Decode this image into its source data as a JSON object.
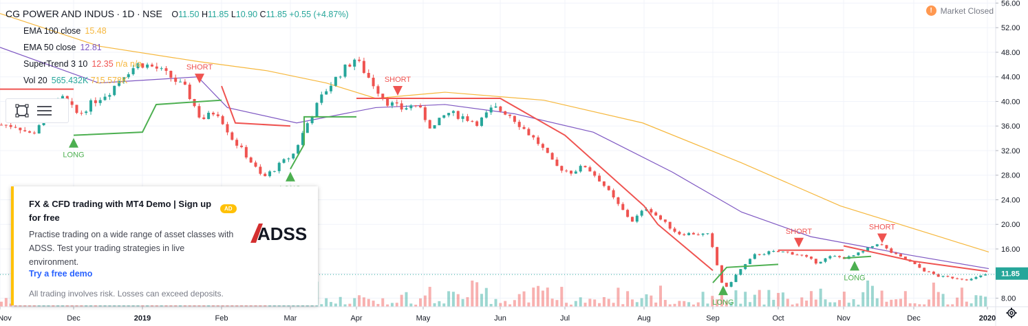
{
  "header": {
    "symbol": "CG POWER AND INDUS",
    "interval": "1D",
    "exchange": "NSE",
    "ohlc": {
      "open_label": "O",
      "open": "11.50",
      "high_label": "H",
      "high": "11.85",
      "low_label": "L",
      "low": "10.90",
      "close_label": "C",
      "close": "11.85",
      "change": "+0.55 (+4.87%)"
    },
    "market_status": "Market Closed",
    "market_status_icon": "!"
  },
  "indicators": [
    {
      "label": "EMA 100 close",
      "value": "15.48",
      "color": "#f6b73c"
    },
    {
      "label": "EMA 50 close",
      "value": "12.81",
      "color": "#7e57c2"
    },
    {
      "label": "SuperTrend 3 10",
      "value": "12.35",
      "extra": "n/a n/a",
      "color": "#ef5350"
    },
    {
      "label": "Vol 20",
      "value": "565.432K",
      "value2": "715.578K",
      "color": "#26a69a"
    }
  ],
  "ad": {
    "title": "FX & CFD trading with MT4 Demo | Sign up for free",
    "badge": "AD",
    "body": "Practise trading on a wide range of asset classes with ADSS. Test your trading strategies in live environment.",
    "logo_text": "ADSS",
    "cta": "Try a free demo",
    "disclaimer": "All trading involves risk. Losses can exceed deposits."
  },
  "colors": {
    "up": "#26a69a",
    "down": "#ef5350",
    "supertrend_up": "#4caf50",
    "supertrend_down": "#ef5350",
    "ema100": "#f6b73c",
    "ema50": "#7e57c2",
    "ad_accent": "#ffc107",
    "link": "#2962ff"
  },
  "chart_data": {
    "type": "candlestick",
    "y_axis": {
      "ticks": [
        56,
        52,
        48,
        44,
        40,
        36,
        32,
        28,
        24,
        20,
        16,
        12,
        8
      ],
      "tick_labels": [
        "56.00",
        "52.00",
        "48.00",
        "44.00",
        "40.00",
        "36.00",
        "32.00",
        "28.00",
        "24.00",
        "20.00",
        "16.00",
        "11.85",
        "8.00"
      ],
      "last_price": "11.85",
      "range": [
        6.6,
        56.5
      ]
    },
    "x_axis": {
      "labels": [
        "Nov",
        "Dec",
        "2019",
        "Feb",
        "Mar",
        "Apr",
        "May",
        "Jun",
        "Jul",
        "Aug",
        "Sep",
        "Oct",
        "Nov",
        "Dec",
        "2020"
      ],
      "bold": [
        "2019",
        "2020"
      ]
    },
    "price_anchors": [
      [
        "Nov",
        36.2
      ],
      [
        "Nov",
        36.0
      ],
      [
        "Nov",
        34.5
      ],
      [
        "Dec",
        38.5
      ],
      [
        "Dec",
        40.5
      ],
      [
        "Dec",
        37.8
      ],
      [
        "Dec",
        40.0
      ],
      [
        "Dec",
        41.5
      ],
      [
        "2019",
        44.5
      ],
      [
        "2019",
        46.2
      ],
      [
        "2019",
        45.5
      ],
      [
        "2019",
        44.0
      ],
      [
        "Feb",
        42.0
      ],
      [
        "Feb",
        37.0
      ],
      [
        "Feb",
        38.5
      ],
      [
        "Feb",
        34.0
      ],
      [
        "Feb",
        31.0
      ],
      [
        "Mar",
        27.5
      ],
      [
        "Mar",
        29.5
      ],
      [
        "Mar",
        31.5
      ],
      [
        "Mar",
        37.0
      ],
      [
        "Mar",
        41.5
      ],
      [
        "Mar",
        44.5
      ],
      [
        "Apr",
        47.0
      ],
      [
        "Apr",
        43.5
      ],
      [
        "Apr",
        40.0
      ],
      [
        "Apr",
        38.8
      ],
      [
        "May",
        39.5
      ],
      [
        "May",
        35.5
      ],
      [
        "May",
        38.2
      ],
      [
        "May",
        37.5
      ],
      [
        "May",
        36.5
      ],
      [
        "Jun",
        39.0
      ],
      [
        "Jun",
        38.0
      ],
      [
        "Jun",
        35.5
      ],
      [
        "Jun",
        33.0
      ],
      [
        "Jun",
        29.5
      ],
      [
        "Jul",
        28.5
      ],
      [
        "Jul",
        29.5
      ],
      [
        "Jul",
        27.0
      ],
      [
        "Jul",
        23.5
      ],
      [
        "Jul",
        20.5
      ],
      [
        "Aug",
        22.8
      ],
      [
        "Aug",
        20.5
      ],
      [
        "Aug",
        18.5
      ],
      [
        "Aug",
        18.5
      ],
      [
        "Aug",
        18.3
      ],
      [
        "Sep",
        9.2
      ],
      [
        "Sep",
        12.5
      ],
      [
        "Sep",
        15.0
      ],
      [
        "Sep",
        15.5
      ],
      [
        "Oct",
        15.5
      ],
      [
        "Oct",
        15.0
      ],
      [
        "Oct",
        13.8
      ],
      [
        "Oct",
        14.8
      ],
      [
        "Nov",
        14.5
      ],
      [
        "Nov",
        15.5
      ],
      [
        "Nov",
        17.0
      ],
      [
        "Nov",
        15.2
      ],
      [
        "Dec",
        14.0
      ],
      [
        "Dec",
        12.5
      ],
      [
        "Dec",
        11.5
      ],
      [
        "Dec",
        11.3
      ],
      [
        "2020",
        11.0
      ],
      [
        "2020",
        11.85
      ]
    ],
    "ema100": [
      [
        0,
        54.3
      ],
      [
        0.1,
        49
      ],
      [
        0.2,
        46.5
      ],
      [
        0.27,
        45
      ],
      [
        0.33,
        43
      ],
      [
        0.38,
        40.5
      ],
      [
        0.45,
        41.5
      ],
      [
        0.55,
        40.2
      ],
      [
        0.65,
        36.5
      ],
      [
        0.75,
        30
      ],
      [
        0.85,
        23
      ],
      [
        0.95,
        18
      ],
      [
        1.0,
        15.5
      ]
    ],
    "ema50": [
      [
        0,
        48.8
      ],
      [
        0.1,
        43
      ],
      [
        0.2,
        44
      ],
      [
        0.23,
        39
      ],
      [
        0.3,
        36.5
      ],
      [
        0.38,
        39
      ],
      [
        0.45,
        39.5
      ],
      [
        0.52,
        38
      ],
      [
        0.6,
        35
      ],
      [
        0.68,
        28.5
      ],
      [
        0.75,
        22
      ],
      [
        0.82,
        18
      ],
      [
        0.92,
        15
      ],
      [
        1.0,
        12.8
      ]
    ],
    "supertrend": [
      {
        "dir": "down",
        "points": [
          [
            "Nov",
            42
          ],
          [
            "Dec",
            42
          ]
        ]
      },
      {
        "dir": "up",
        "points": [
          [
            "Dec",
            34.5
          ],
          [
            "2019",
            35
          ],
          [
            "2019",
            39.5
          ],
          [
            "Feb",
            40.2
          ]
        ]
      },
      {
        "dir": "down",
        "points": [
          [
            "Feb",
            42.5
          ],
          [
            "Feb",
            36.5
          ],
          [
            "Mar",
            36
          ]
        ]
      },
      {
        "dir": "up",
        "points": [
          [
            "Mar",
            29
          ],
          [
            "Mar",
            33
          ],
          [
            "Mar",
            37.5
          ],
          [
            "Apr",
            37.5
          ]
        ]
      },
      {
        "dir": "down",
        "points": [
          [
            "Apr",
            40.5
          ],
          [
            "Jun",
            40.5
          ],
          [
            "Jul",
            34.5
          ],
          [
            "Aug",
            23
          ],
          [
            "Aug",
            20
          ],
          [
            "Sep",
            12.5
          ]
        ]
      },
      {
        "dir": "up",
        "points": [
          [
            "Sep",
            10.5
          ],
          [
            "Sep",
            13
          ],
          [
            "Oct",
            13.5
          ]
        ]
      },
      {
        "dir": "down",
        "points": [
          [
            "Oct",
            15.8
          ],
          [
            "Nov",
            15.8
          ]
        ]
      },
      {
        "dir": "up",
        "points": [
          [
            "Nov",
            14.5
          ],
          [
            "Nov",
            14.8
          ]
        ]
      },
      {
        "dir": "down",
        "points": [
          [
            "Nov",
            16.5
          ],
          [
            "Dec",
            14
          ],
          [
            "2020",
            12.35
          ]
        ]
      }
    ],
    "signals": [
      {
        "type": "LONG",
        "x": "Dec",
        "price": 34.5
      },
      {
        "type": "SHORT",
        "x": "Feb",
        "price": 42.5
      },
      {
        "type": "LONG",
        "x": "Mar",
        "price": 29
      },
      {
        "type": "SHORT",
        "x": "Apr",
        "price": 40.5
      },
      {
        "type": "LONG",
        "x": "Sep",
        "price": 10.5
      },
      {
        "type": "SHORT",
        "x": "Oct",
        "price": 15.8
      },
      {
        "type": "LONG",
        "x": "Nov",
        "price": 14.5
      },
      {
        "type": "SHORT",
        "x": "Nov",
        "price": 16.5
      }
    ]
  }
}
